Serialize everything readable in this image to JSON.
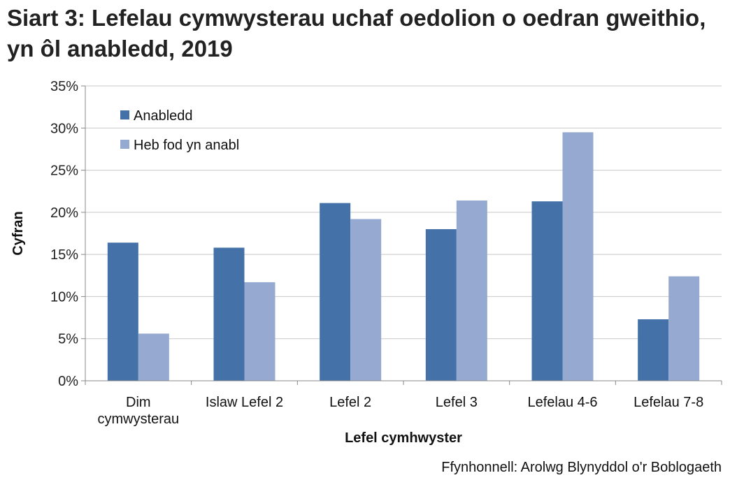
{
  "chart_data": {
    "type": "bar",
    "title": "Siart 3: Lefelau cymwysterau uchaf oedolion o oedran gweithio, yn ôl anabledd, 2019",
    "xlabel": "Lefel cymhwyster",
    "ylabel": "Cyfran",
    "source": "Ffynhonnell: Arolwg Blynyddol o'r Boblogaeth",
    "categories": [
      [
        "Dim",
        "cymwysterau"
      ],
      [
        "Islaw Lefel 2"
      ],
      [
        "Lefel 2"
      ],
      [
        "Lefel 3"
      ],
      [
        "Lefelau 4-6"
      ],
      [
        "Lefelau 7-8"
      ]
    ],
    "series": [
      {
        "name": "Anabledd",
        "color": "#4472a8",
        "values": [
          16.4,
          15.8,
          21.1,
          18.0,
          21.3,
          7.3
        ]
      },
      {
        "name": "Heb fod yn anabl",
        "color": "#95a9d1",
        "values": [
          5.6,
          11.7,
          19.2,
          21.4,
          29.5,
          12.4
        ]
      }
    ],
    "ylim": [
      0,
      35
    ],
    "yticks": [
      "0%",
      "5%",
      "10%",
      "15%",
      "20%",
      "25%",
      "30%",
      "35%"
    ],
    "grid": true,
    "legend": "top-left"
  }
}
